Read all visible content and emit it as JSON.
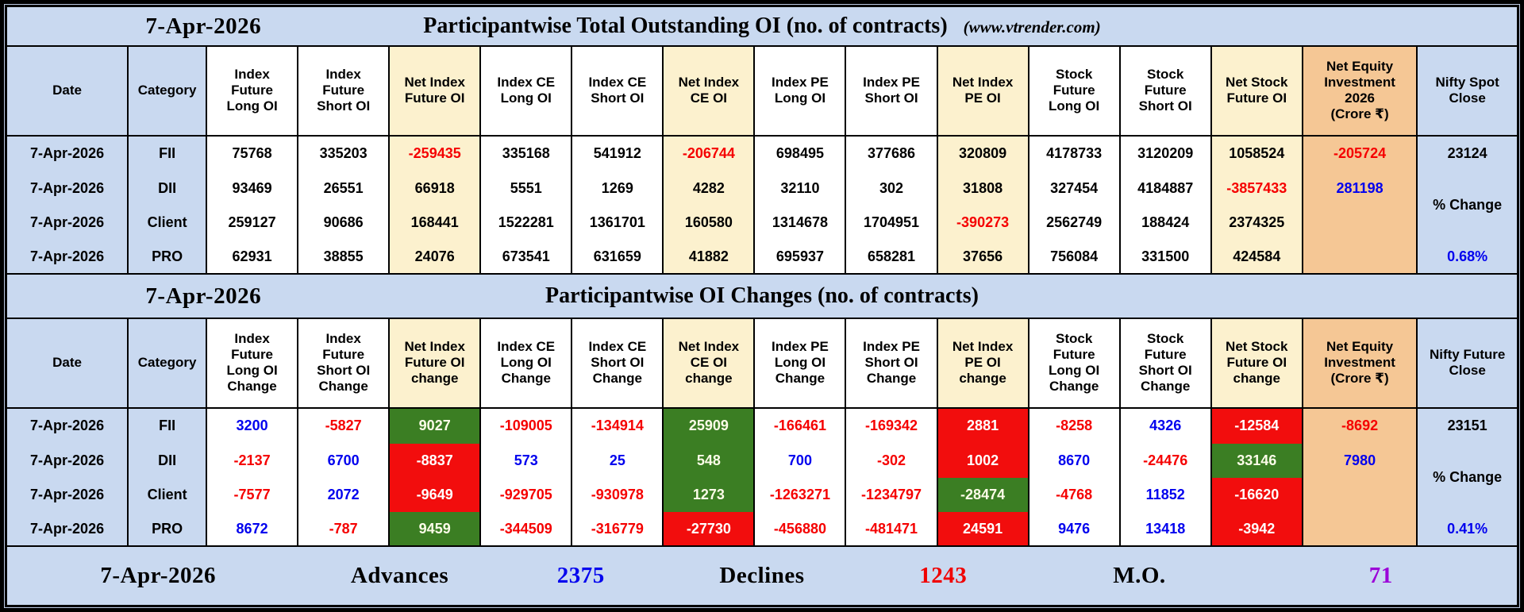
{
  "meta": {
    "site_credit": "(www.vtrender.com)"
  },
  "colors": {
    "band_bg": "#c9d9f0",
    "net_column_bg": "#fcf1ce",
    "equity_column_bg": "#f5c795",
    "negative_text": "#f50000",
    "positive_text": "#0000ee",
    "bullish_cell_bg": "#3b7e23",
    "bearish_cell_bg": "#f20d0d",
    "mo_value_color": "#9b00d8"
  },
  "table1": {
    "date": "7-Apr-2026",
    "title": "Participantwise Total Outstanding OI (no. of contracts)",
    "columns": [
      {
        "label": "Date",
        "bg": "blue",
        "w": 8.0
      },
      {
        "label": "Category",
        "bg": "blue",
        "w": 5.2
      },
      {
        "label": "Index\nFuture\nLong OI",
        "bg": "white",
        "w": 6.05
      },
      {
        "label": "Index\nFuture\nShort OI",
        "bg": "white",
        "w": 6.05
      },
      {
        "label": "Net Index\nFuture OI",
        "bg": "cream",
        "w": 6.05
      },
      {
        "label": "Index CE\nLong OI",
        "bg": "white",
        "w": 6.05
      },
      {
        "label": "Index CE\nShort OI",
        "bg": "white",
        "w": 6.05
      },
      {
        "label": "Net Index\nCE OI",
        "bg": "cream",
        "w": 6.05
      },
      {
        "label": "Index PE\nLong OI",
        "bg": "white",
        "w": 6.05
      },
      {
        "label": "Index PE\nShort OI",
        "bg": "white",
        "w": 6.05
      },
      {
        "label": "Net Index\nPE OI",
        "bg": "cream",
        "w": 6.05
      },
      {
        "label": "Stock\nFuture\nLong OI",
        "bg": "white",
        "w": 6.05
      },
      {
        "label": "Stock\nFuture\nShort OI",
        "bg": "white",
        "w": 6.05
      },
      {
        "label": "Net Stock\nFuture OI",
        "bg": "cream",
        "w": 6.05
      },
      {
        "label": "Net Equity\nInvestment\n2026\n(Crore ₹)",
        "bg": "orange",
        "w": 7.6
      },
      {
        "label": "Nifty Spot\nClose",
        "bg": "blue",
        "w": 6.6
      }
    ],
    "rows": [
      [
        {
          "v": "7-Apr-2026"
        },
        {
          "v": "FII"
        },
        {
          "v": "75768"
        },
        {
          "v": "335203"
        },
        {
          "v": "-259435",
          "s": "r"
        },
        {
          "v": "335168"
        },
        {
          "v": "541912"
        },
        {
          "v": "-206744",
          "s": "r"
        },
        {
          "v": "698495"
        },
        {
          "v": "377686"
        },
        {
          "v": "320809"
        },
        {
          "v": "4178733"
        },
        {
          "v": "3120209"
        },
        {
          "v": "1058524"
        },
        {
          "v": "-205724",
          "s": "r"
        },
        {
          "v": "23124"
        }
      ],
      [
        {
          "v": "7-Apr-2026"
        },
        {
          "v": "DII"
        },
        {
          "v": "93469"
        },
        {
          "v": "26551"
        },
        {
          "v": "66918"
        },
        {
          "v": "5551"
        },
        {
          "v": "1269"
        },
        {
          "v": "4282"
        },
        {
          "v": "32110"
        },
        {
          "v": "302"
        },
        {
          "v": "31808"
        },
        {
          "v": "327454"
        },
        {
          "v": "4184887"
        },
        {
          "v": "-3857433",
          "s": "r"
        },
        {
          "v": "281198",
          "s": "b"
        },
        {
          "v": "% Change",
          "rs": 2
        }
      ],
      [
        {
          "v": "7-Apr-2026"
        },
        {
          "v": "Client"
        },
        {
          "v": "259127"
        },
        {
          "v": "90686"
        },
        {
          "v": "168441"
        },
        {
          "v": "1522281"
        },
        {
          "v": "1361701"
        },
        {
          "v": "160580"
        },
        {
          "v": "1314678"
        },
        {
          "v": "1704951"
        },
        {
          "v": "-390273",
          "s": "r"
        },
        {
          "v": "2562749"
        },
        {
          "v": "188424"
        },
        {
          "v": "2374325"
        },
        {
          "v": "",
          "rs": 2
        },
        null
      ],
      [
        {
          "v": "7-Apr-2026"
        },
        {
          "v": "PRO"
        },
        {
          "v": "62931"
        },
        {
          "v": "38855"
        },
        {
          "v": "24076"
        },
        {
          "v": "673541"
        },
        {
          "v": "631659"
        },
        {
          "v": "41882"
        },
        {
          "v": "695937"
        },
        {
          "v": "658281"
        },
        {
          "v": "37656"
        },
        {
          "v": "756084"
        },
        {
          "v": "331500"
        },
        {
          "v": "424584"
        },
        null,
        {
          "v": "0.68%",
          "s": "b"
        }
      ]
    ]
  },
  "table2": {
    "date": "7-Apr-2026",
    "title": "Participantwise OI Changes (no. of contracts)",
    "columns": [
      {
        "label": "Date",
        "bg": "blue",
        "w": 8.0
      },
      {
        "label": "Category",
        "bg": "blue",
        "w": 5.2
      },
      {
        "label": "Index\nFuture\nLong OI\nChange",
        "bg": "white",
        "w": 6.05
      },
      {
        "label": "Index\nFuture\nShort OI\nChange",
        "bg": "white",
        "w": 6.05
      },
      {
        "label": "Net Index\nFuture OI\nchange",
        "bg": "cream",
        "w": 6.05
      },
      {
        "label": "Index CE\nLong OI\nChange",
        "bg": "white",
        "w": 6.05
      },
      {
        "label": "Index CE\nShort OI\nChange",
        "bg": "white",
        "w": 6.05
      },
      {
        "label": "Net Index\nCE OI\nchange",
        "bg": "cream",
        "w": 6.05
      },
      {
        "label": "Index PE\nLong OI\nChange",
        "bg": "white",
        "w": 6.05
      },
      {
        "label": "Index PE\nShort OI\nChange",
        "bg": "white",
        "w": 6.05
      },
      {
        "label": "Net Index\nPE OI\nchange",
        "bg": "cream",
        "w": 6.05
      },
      {
        "label": "Stock\nFuture\nLong OI\nChange",
        "bg": "white",
        "w": 6.05
      },
      {
        "label": "Stock\nFuture\nShort OI\nChange",
        "bg": "white",
        "w": 6.05
      },
      {
        "label": "Net Stock\nFuture OI\nchange",
        "bg": "cream",
        "w": 6.05
      },
      {
        "label": "Net Equity\nInvestment\n(Crore ₹)",
        "bg": "orange",
        "w": 7.6
      },
      {
        "label": "Nifty Future\nClose",
        "bg": "blue",
        "w": 6.6
      }
    ],
    "rows": [
      [
        {
          "v": "7-Apr-2026"
        },
        {
          "v": "FII"
        },
        {
          "v": "3200",
          "s": "b"
        },
        {
          "v": "-5827",
          "s": "r"
        },
        {
          "v": "9027",
          "s": "gb"
        },
        {
          "v": "-109005",
          "s": "r"
        },
        {
          "v": "-134914",
          "s": "r"
        },
        {
          "v": "25909",
          "s": "gb"
        },
        {
          "v": "-166461",
          "s": "r"
        },
        {
          "v": "-169342",
          "s": "r"
        },
        {
          "v": "2881",
          "s": "rb"
        },
        {
          "v": "-8258",
          "s": "r"
        },
        {
          "v": "4326",
          "s": "b"
        },
        {
          "v": "-12584",
          "s": "rb"
        },
        {
          "v": "-8692",
          "s": "r"
        },
        {
          "v": "23151"
        }
      ],
      [
        {
          "v": "7-Apr-2026"
        },
        {
          "v": "DII"
        },
        {
          "v": "-2137",
          "s": "r"
        },
        {
          "v": "6700",
          "s": "b"
        },
        {
          "v": "-8837",
          "s": "rb"
        },
        {
          "v": "573",
          "s": "b"
        },
        {
          "v": "25",
          "s": "b"
        },
        {
          "v": "548",
          "s": "gb"
        },
        {
          "v": "700",
          "s": "b"
        },
        {
          "v": "-302",
          "s": "r"
        },
        {
          "v": "1002",
          "s": "rb"
        },
        {
          "v": "8670",
          "s": "b"
        },
        {
          "v": "-24476",
          "s": "r"
        },
        {
          "v": "33146",
          "s": "gb"
        },
        {
          "v": "7980",
          "s": "b"
        },
        {
          "v": "% Change",
          "rs": 2
        }
      ],
      [
        {
          "v": "7-Apr-2026"
        },
        {
          "v": "Client"
        },
        {
          "v": "-7577",
          "s": "r"
        },
        {
          "v": "2072",
          "s": "b"
        },
        {
          "v": "-9649",
          "s": "rb"
        },
        {
          "v": "-929705",
          "s": "r"
        },
        {
          "v": "-930978",
          "s": "r"
        },
        {
          "v": "1273",
          "s": "gb"
        },
        {
          "v": "-1263271",
          "s": "r"
        },
        {
          "v": "-1234797",
          "s": "r"
        },
        {
          "v": "-28474",
          "s": "gb"
        },
        {
          "v": "-4768",
          "s": "r"
        },
        {
          "v": "11852",
          "s": "b"
        },
        {
          "v": "-16620",
          "s": "rb"
        },
        {
          "v": "",
          "rs": 2
        },
        null
      ],
      [
        {
          "v": "7-Apr-2026"
        },
        {
          "v": "PRO"
        },
        {
          "v": "8672",
          "s": "b"
        },
        {
          "v": "-787",
          "s": "r"
        },
        {
          "v": "9459",
          "s": "gb"
        },
        {
          "v": "-344509",
          "s": "r"
        },
        {
          "v": "-316779",
          "s": "r"
        },
        {
          "v": "-27730",
          "s": "rb"
        },
        {
          "v": "-456880",
          "s": "r"
        },
        {
          "v": "-481471",
          "s": "r"
        },
        {
          "v": "24591",
          "s": "rb"
        },
        {
          "v": "9476",
          "s": "b"
        },
        {
          "v": "13418",
          "s": "b"
        },
        {
          "v": "-3942",
          "s": "rb"
        },
        null,
        {
          "v": "0.41%",
          "s": "b"
        }
      ]
    ]
  },
  "footer": {
    "date": "7-Apr-2026",
    "advances_label": "Advances",
    "advances_value": "2375",
    "declines_label": "Declines",
    "declines_value": "1243",
    "mo_label": "M.O.",
    "mo_value": "71"
  }
}
